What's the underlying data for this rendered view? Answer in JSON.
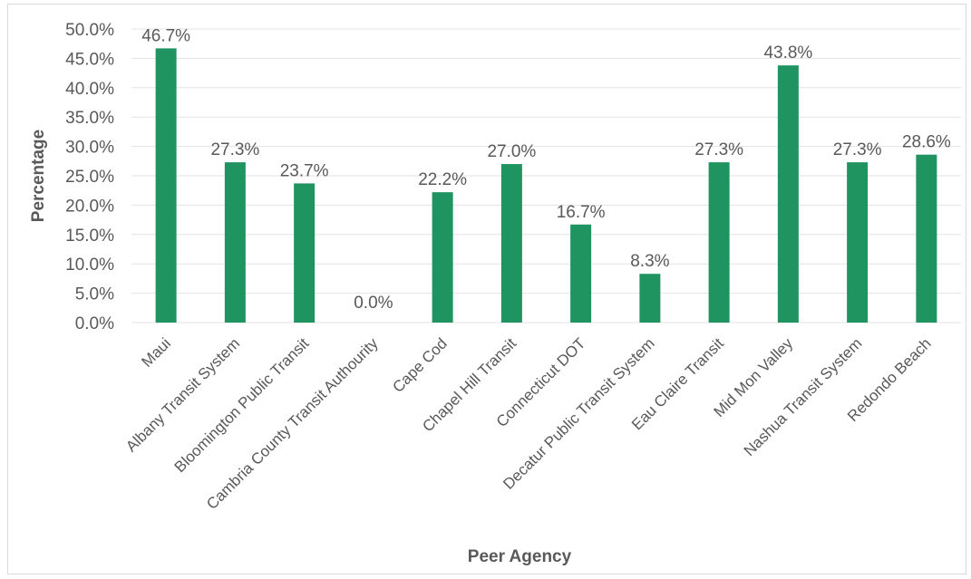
{
  "chart_data": {
    "type": "bar",
    "title": "",
    "xlabel": "Peer Agency",
    "ylabel": "Percentage",
    "ylim": [
      0,
      50
    ],
    "y_ticks": [
      "0.0%",
      "5.0%",
      "10.0%",
      "15.0%",
      "20.0%",
      "25.0%",
      "30.0%",
      "35.0%",
      "40.0%",
      "45.0%",
      "50.0%"
    ],
    "categories": [
      "Maui",
      "Albany Transit System",
      "Bloomington Public Transit",
      "Cambria County Transit Authourity",
      "Cape Cod",
      "Chapel Hill Transit",
      "Connecticut DOT",
      "Decatur Public Transit System",
      "Eau Claire Transit",
      "Mid Mon Valley",
      "Nashua Transit System",
      "Redondo Beach"
    ],
    "values": [
      46.7,
      27.3,
      23.7,
      0.0,
      22.2,
      27.0,
      16.7,
      8.3,
      27.3,
      43.8,
      27.3,
      28.6
    ],
    "data_labels": [
      "46.7%",
      "27.3%",
      "23.7%",
      "0.0%",
      "22.2%",
      "27.0%",
      "16.7%",
      "8.3%",
      "27.3%",
      "43.8%",
      "27.3%",
      "28.6%"
    ],
    "bar_color": "#1f9460",
    "grid": true,
    "legend": "none"
  }
}
